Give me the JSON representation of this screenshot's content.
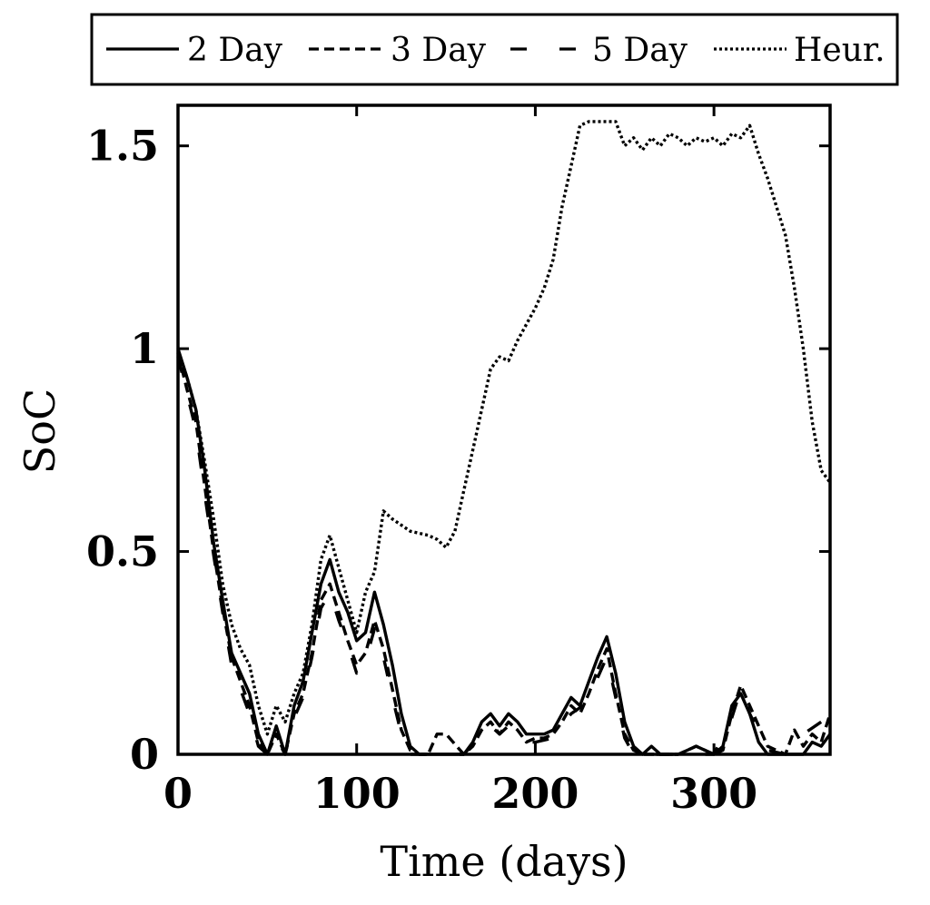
{
  "chart_data": {
    "type": "line",
    "xlabel": "Time (days)",
    "ylabel": "SoC",
    "xlim": [
      0,
      365
    ],
    "ylim": [
      0,
      1.6
    ],
    "xticks": [
      0,
      100,
      200,
      300
    ],
    "xtick_labels": [
      "0",
      "100",
      "200",
      "300"
    ],
    "yticks": [
      0,
      0.5,
      1,
      1.5
    ],
    "ytick_labels": [
      "0",
      "0.5",
      "1",
      "1.5"
    ],
    "grid": false,
    "legend_position": "top, outside plot",
    "series": [
      {
        "name": "2 Day",
        "style": "solid",
        "x": [
          0,
          5,
          10,
          15,
          20,
          25,
          30,
          35,
          40,
          45,
          50,
          55,
          60,
          65,
          70,
          75,
          80,
          85,
          90,
          95,
          100,
          105,
          110,
          115,
          120,
          125,
          130,
          135,
          140,
          150,
          160,
          165,
          170,
          175,
          180,
          185,
          190,
          195,
          200,
          205,
          210,
          215,
          220,
          225,
          230,
          235,
          240,
          245,
          250,
          255,
          260,
          265,
          270,
          280,
          290,
          300,
          305,
          310,
          315,
          320,
          325,
          330,
          340,
          350,
          355,
          360,
          365
        ],
        "y": [
          1.0,
          0.93,
          0.85,
          0.7,
          0.52,
          0.38,
          0.25,
          0.2,
          0.15,
          0.05,
          0.0,
          0.07,
          0.0,
          0.12,
          0.18,
          0.3,
          0.42,
          0.48,
          0.4,
          0.35,
          0.28,
          0.3,
          0.4,
          0.32,
          0.22,
          0.1,
          0.02,
          0.0,
          0.0,
          0.0,
          0.0,
          0.03,
          0.08,
          0.1,
          0.07,
          0.1,
          0.08,
          0.05,
          0.05,
          0.05,
          0.06,
          0.1,
          0.14,
          0.12,
          0.18,
          0.24,
          0.29,
          0.2,
          0.08,
          0.02,
          0.0,
          0.02,
          0.0,
          0.0,
          0.02,
          0.0,
          0.02,
          0.12,
          0.15,
          0.1,
          0.03,
          0.0,
          0.0,
          0.0,
          0.03,
          0.02,
          0.05
        ]
      },
      {
        "name": "3 Day",
        "style": "dashed",
        "x": [
          0,
          5,
          10,
          15,
          20,
          25,
          30,
          35,
          40,
          45,
          50,
          55,
          60,
          65,
          70,
          75,
          80,
          85,
          90,
          95,
          100,
          105,
          110,
          115,
          120,
          125,
          130,
          135,
          140,
          145,
          150,
          160,
          165,
          170,
          175,
          180,
          185,
          190,
          195,
          200,
          205,
          210,
          215,
          220,
          225,
          230,
          235,
          240,
          245,
          250,
          255,
          260,
          270,
          280,
          290,
          300,
          305,
          310,
          315,
          320,
          330,
          340,
          345,
          350,
          355,
          360,
          365
        ],
        "y": [
          0.99,
          0.9,
          0.82,
          0.66,
          0.5,
          0.36,
          0.24,
          0.18,
          0.12,
          0.03,
          0.0,
          0.05,
          0.0,
          0.1,
          0.15,
          0.25,
          0.38,
          0.42,
          0.35,
          0.28,
          0.22,
          0.25,
          0.33,
          0.26,
          0.16,
          0.06,
          0.01,
          0.0,
          0.0,
          0.05,
          0.05,
          0.0,
          0.02,
          0.06,
          0.08,
          0.05,
          0.08,
          0.06,
          0.03,
          0.04,
          0.04,
          0.05,
          0.08,
          0.12,
          0.1,
          0.15,
          0.21,
          0.26,
          0.15,
          0.05,
          0.01,
          0.0,
          0.0,
          0.0,
          0.02,
          0.0,
          0.01,
          0.1,
          0.17,
          0.12,
          0.02,
          0.0,
          0.06,
          0.02,
          0.05,
          0.03,
          0.1
        ]
      },
      {
        "name": "5 Day",
        "style": "long-dashed",
        "x": [
          0,
          5,
          10,
          15,
          20,
          25,
          30,
          35,
          40,
          45,
          50,
          55,
          60,
          65,
          70,
          75,
          80,
          85,
          90,
          95,
          100,
          105,
          110,
          115,
          120,
          125,
          130,
          135,
          140,
          150,
          160,
          170,
          175,
          180,
          185,
          190,
          195,
          200,
          210,
          220,
          230,
          235,
          240,
          245,
          250,
          255,
          260,
          270,
          280,
          290,
          300,
          310,
          315,
          320,
          330,
          340,
          350,
          360,
          365
        ],
        "y": [
          0.98,
          0.89,
          0.8,
          0.64,
          0.49,
          0.35,
          0.22,
          0.16,
          0.1,
          0.02,
          0.0,
          0.04,
          0.0,
          0.09,
          0.14,
          0.24,
          0.36,
          0.4,
          0.33,
          0.27,
          0.2,
          0.23,
          0.31,
          0.24,
          0.14,
          0.05,
          0.0,
          0.0,
          0.0,
          0.0,
          0.0,
          0.05,
          0.07,
          0.05,
          0.07,
          0.05,
          0.03,
          0.03,
          0.04,
          0.1,
          0.13,
          0.19,
          0.24,
          0.14,
          0.04,
          0.0,
          0.0,
          0.0,
          0.0,
          0.0,
          0.0,
          0.09,
          0.16,
          0.1,
          0.01,
          0.0,
          0.05,
          0.08,
          0.12
        ]
      },
      {
        "name": "Heur.",
        "style": "dotted",
        "x": [
          0,
          5,
          10,
          15,
          20,
          25,
          30,
          35,
          40,
          45,
          50,
          55,
          60,
          65,
          70,
          75,
          80,
          85,
          90,
          95,
          100,
          105,
          110,
          115,
          120,
          130,
          140,
          145,
          150,
          155,
          160,
          165,
          170,
          175,
          180,
          185,
          190,
          195,
          200,
          205,
          210,
          215,
          220,
          225,
          230,
          235,
          240,
          245,
          250,
          255,
          260,
          265,
          270,
          275,
          280,
          285,
          290,
          295,
          300,
          305,
          310,
          315,
          320,
          325,
          330,
          335,
          340,
          345,
          350,
          355,
          360,
          365
        ],
        "y": [
          0.99,
          0.93,
          0.85,
          0.72,
          0.58,
          0.42,
          0.32,
          0.26,
          0.22,
          0.12,
          0.05,
          0.12,
          0.08,
          0.15,
          0.2,
          0.32,
          0.48,
          0.54,
          0.46,
          0.38,
          0.3,
          0.4,
          0.45,
          0.6,
          0.58,
          0.55,
          0.54,
          0.53,
          0.51,
          0.55,
          0.65,
          0.75,
          0.85,
          0.95,
          0.98,
          0.97,
          1.02,
          1.06,
          1.1,
          1.15,
          1.22,
          1.35,
          1.45,
          1.55,
          1.56,
          1.56,
          1.56,
          1.56,
          1.5,
          1.52,
          1.49,
          1.52,
          1.5,
          1.53,
          1.52,
          1.5,
          1.52,
          1.51,
          1.52,
          1.5,
          1.53,
          1.52,
          1.55,
          1.48,
          1.42,
          1.35,
          1.28,
          1.15,
          1.0,
          0.82,
          0.7,
          0.67
        ]
      }
    ]
  }
}
